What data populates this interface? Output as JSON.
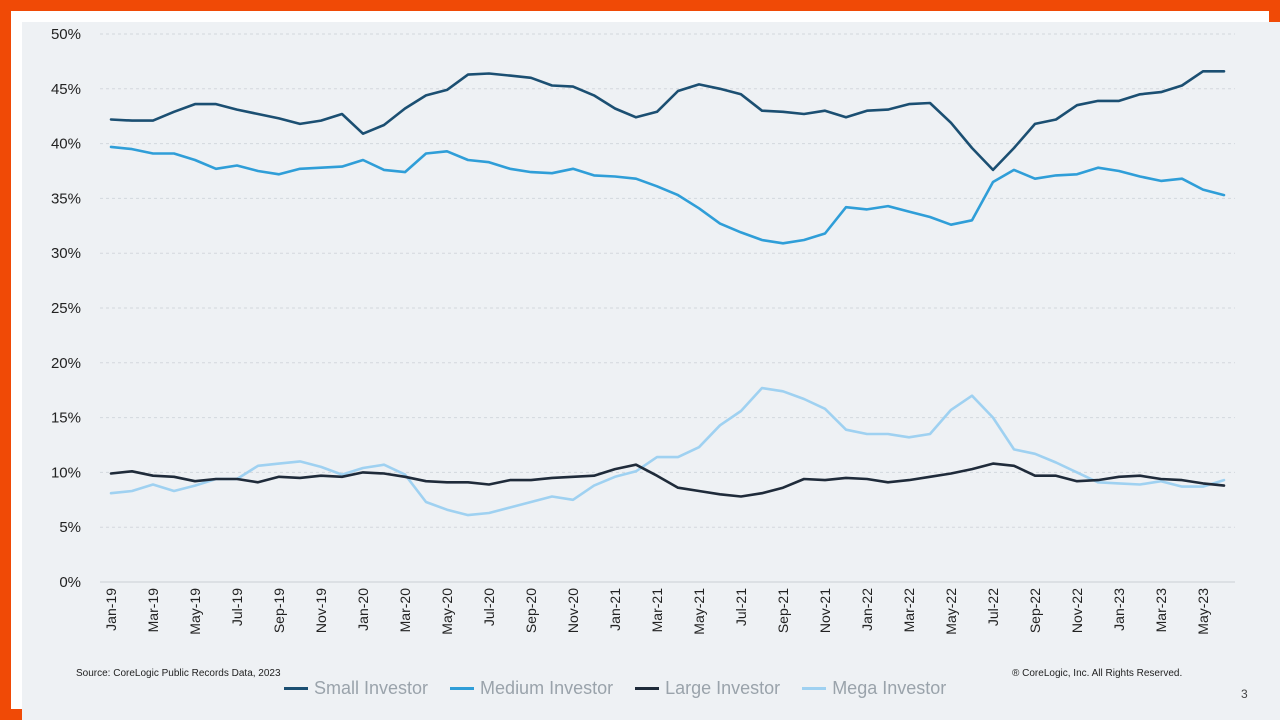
{
  "chart_data": {
    "type": "line",
    "title": "",
    "xlabel": "",
    "ylabel": "",
    "ylim": [
      0,
      50
    ],
    "y_tick_labels": [
      "0%",
      "5%",
      "10%",
      "15%",
      "20%",
      "25%",
      "30%",
      "35%",
      "40%",
      "45%",
      "50%"
    ],
    "grid": true,
    "legend_position": "bottom",
    "x": [
      "Jan-19",
      "Feb-19",
      "Mar-19",
      "Apr-19",
      "May-19",
      "Jun-19",
      "Jul-19",
      "Aug-19",
      "Sep-19",
      "Oct-19",
      "Nov-19",
      "Dec-19",
      "Jan-20",
      "Feb-20",
      "Mar-20",
      "Apr-20",
      "May-20",
      "Jun-20",
      "Jul-20",
      "Aug-20",
      "Sep-20",
      "Oct-20",
      "Nov-20",
      "Dec-20",
      "Jan-21",
      "Feb-21",
      "Mar-21",
      "Apr-21",
      "May-21",
      "Jun-21",
      "Jul-21",
      "Aug-21",
      "Sep-21",
      "Oct-21",
      "Nov-21",
      "Dec-21",
      "Jan-22",
      "Feb-22",
      "Mar-22",
      "Apr-22",
      "May-22",
      "Jun-22",
      "Jul-22",
      "Aug-22",
      "Sep-22",
      "Oct-22",
      "Nov-22",
      "Dec-22",
      "Jan-23",
      "Feb-23",
      "Mar-23",
      "Apr-23",
      "May-23",
      "Jun-23"
    ],
    "x_tick_labels": [
      "Jan-19",
      "Mar-19",
      "May-19",
      "Jul-19",
      "Sep-19",
      "Nov-19",
      "Jan-20",
      "Mar-20",
      "May-20",
      "Jul-20",
      "Sep-20",
      "Nov-20",
      "Jan-21",
      "Mar-21",
      "May-21",
      "Jul-21",
      "Sep-21",
      "Nov-21",
      "Jan-22",
      "Mar-22",
      "May-22",
      "Jul-22",
      "Sep-22",
      "Nov-22",
      "Jan-23",
      "Mar-23",
      "May-23"
    ],
    "series": [
      {
        "name": "Small Investor",
        "color": "#1b4f72",
        "values": [
          42.2,
          42.1,
          42.1,
          42.9,
          43.6,
          43.6,
          43.1,
          42.7,
          42.3,
          41.8,
          42.1,
          42.7,
          40.9,
          41.7,
          43.2,
          44.4,
          44.9,
          46.3,
          46.4,
          46.2,
          46.0,
          45.3,
          45.2,
          44.4,
          43.2,
          42.4,
          42.9,
          44.8,
          45.4,
          45.0,
          44.5,
          43.0,
          42.9,
          42.7,
          43.0,
          42.4,
          43.0,
          43.1,
          43.6,
          43.7,
          41.9,
          39.6,
          37.6,
          39.6,
          41.8,
          42.2,
          43.5,
          43.9,
          43.9,
          44.5,
          44.7,
          45.3,
          46.6,
          46.6
        ]
      },
      {
        "name": "Medium Investor",
        "color": "#2f9ed8",
        "values": [
          39.7,
          39.5,
          39.1,
          39.1,
          38.5,
          37.7,
          38.0,
          37.5,
          37.2,
          37.7,
          37.8,
          37.9,
          38.5,
          37.6,
          37.4,
          39.1,
          39.3,
          38.5,
          38.3,
          37.7,
          37.4,
          37.3,
          37.7,
          37.1,
          37.0,
          36.8,
          36.1,
          35.3,
          34.1,
          32.7,
          31.9,
          31.2,
          30.9,
          31.2,
          31.8,
          34.2,
          34.0,
          34.3,
          33.8,
          33.3,
          32.6,
          33.0,
          36.5,
          37.6,
          36.8,
          37.1,
          37.2,
          37.8,
          37.5,
          37.0,
          36.6,
          36.8,
          35.8,
          35.3
        ]
      },
      {
        "name": "Large Investor",
        "color": "#1f2b3a",
        "values": [
          9.9,
          10.1,
          9.7,
          9.6,
          9.2,
          9.4,
          9.4,
          9.1,
          9.6,
          9.5,
          9.7,
          9.6,
          10.0,
          9.9,
          9.6,
          9.2,
          9.1,
          9.1,
          8.9,
          9.3,
          9.3,
          9.5,
          9.6,
          9.7,
          10.3,
          10.7,
          9.7,
          8.6,
          8.3,
          8.0,
          7.8,
          8.1,
          8.6,
          9.4,
          9.3,
          9.5,
          9.4,
          9.1,
          9.3,
          9.6,
          9.9,
          10.3,
          10.8,
          10.6,
          9.7,
          9.7,
          9.2,
          9.3,
          9.6,
          9.7,
          9.4,
          9.3,
          9.0,
          8.8
        ]
      },
      {
        "name": "Mega Investor",
        "color": "#9fd1f1",
        "values": [
          8.1,
          8.3,
          8.9,
          8.3,
          8.8,
          9.4,
          9.4,
          10.6,
          10.8,
          11.0,
          10.5,
          9.8,
          10.4,
          10.7,
          9.8,
          7.3,
          6.6,
          6.1,
          6.3,
          6.8,
          7.3,
          7.8,
          7.5,
          8.8,
          9.6,
          10.1,
          11.4,
          11.4,
          12.3,
          14.3,
          15.6,
          17.7,
          17.4,
          16.7,
          15.8,
          13.9,
          13.5,
          13.5,
          13.2,
          13.5,
          15.7,
          17.0,
          15.0,
          12.1,
          11.7,
          10.9,
          10.0,
          9.1,
          9.0,
          8.9,
          9.2,
          8.7,
          8.7,
          9.3
        ]
      }
    ]
  },
  "footer": {
    "source": "Source: CoreLogic Public Records Data, 2023",
    "copyright": "® CoreLogic, Inc. All Rights Reserved.",
    "page_number": "3"
  }
}
